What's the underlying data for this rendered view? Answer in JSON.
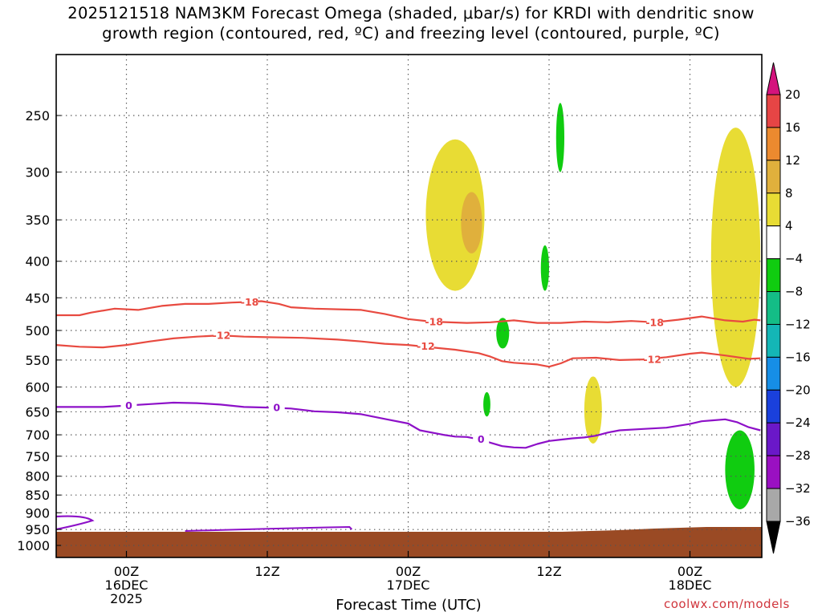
{
  "title": "2025121518 NAM3KM Forecast Omega (shaded, μbar/s) for KRDI with dendritic snow\ngrowth region (contoured, red, ºC) and freezing level (contoured, purple, ºC)",
  "credit": "coolwx.com/models",
  "chart_data": {
    "type": "time-height cross-section",
    "title": "2025121518 NAM3KM Forecast Omega (shaded, μbar/s) for KRDI with dendritic snow growth region (contoured, red, ºC) and freezing level (contoured, purple, ºC)",
    "xlabel": "Forecast Time (UTC)",
    "ylabel": "",
    "x_ticks": [
      {
        "hours": 6,
        "labels": [
          "00Z",
          "16DEC",
          "2025"
        ]
      },
      {
        "hours": 18,
        "labels": [
          "12Z"
        ]
      },
      {
        "hours": 30,
        "labels": [
          "00Z",
          "17DEC"
        ]
      },
      {
        "hours": 42,
        "labels": [
          "12Z"
        ]
      },
      {
        "hours": 54,
        "labels": [
          "00Z",
          "18DEC"
        ]
      }
    ],
    "xlim_hours": [
      0,
      60
    ],
    "y_scale": "log-pressure, inverted",
    "y_ticks_hPa": [
      250,
      300,
      350,
      400,
      450,
      500,
      550,
      600,
      650,
      700,
      750,
      800,
      850,
      900,
      950,
      1000
    ],
    "ylim_hPa": [
      1050,
      200
    ],
    "grid": true,
    "colorbar": {
      "levels": [
        20,
        16,
        12,
        8,
        4,
        -4,
        -8,
        -12,
        -16,
        -20,
        -24,
        -28,
        -32,
        -36
      ],
      "colors": [
        "#d4137d",
        "#e64545",
        "#ec8a2f",
        "#e0b03c",
        "#e8dc34",
        "#ffffff",
        "#10cc10",
        "#14bd86",
        "#14b6b6",
        "#168ee6",
        "#1a40dc",
        "#6a18c8",
        "#9a10c2",
        "#a8a8a8",
        "#000000"
      ]
    },
    "contours": [
      {
        "name": "dendritic -18",
        "label": "-18",
        "color": "#e84a40",
        "points": [
          [
            0,
            476
          ],
          [
            2,
            476
          ],
          [
            3,
            472
          ],
          [
            5,
            466
          ],
          [
            7,
            468
          ],
          [
            9,
            462
          ],
          [
            11,
            459
          ],
          [
            13,
            459
          ],
          [
            15,
            457
          ],
          [
            16.5,
            456
          ],
          [
            17.5,
            455
          ],
          [
            19,
            459
          ],
          [
            20,
            464
          ],
          [
            22,
            466
          ],
          [
            24,
            467
          ],
          [
            26,
            468
          ],
          [
            28,
            474
          ],
          [
            30,
            482
          ],
          [
            32,
            486
          ],
          [
            35,
            488
          ],
          [
            37,
            487
          ],
          [
            39,
            484
          ],
          [
            41,
            488
          ],
          [
            43,
            488
          ],
          [
            45,
            486
          ],
          [
            47,
            487
          ],
          [
            49,
            485
          ],
          [
            51,
            487
          ],
          [
            53,
            483
          ],
          [
            55,
            478
          ],
          [
            57,
            484
          ],
          [
            58.5,
            486
          ],
          [
            59.5,
            483
          ],
          [
            60,
            484
          ]
        ]
      },
      {
        "name": "dendritic -12",
        "label": "-12",
        "color": "#e84a40",
        "points": [
          [
            0,
            524
          ],
          [
            2,
            527
          ],
          [
            4,
            528
          ],
          [
            6,
            524
          ],
          [
            8,
            518
          ],
          [
            10,
            513
          ],
          [
            12,
            510
          ],
          [
            14,
            508
          ],
          [
            16,
            510
          ],
          [
            18,
            511
          ],
          [
            21,
            512
          ],
          [
            24,
            515
          ],
          [
            26,
            518
          ],
          [
            28,
            522
          ],
          [
            30,
            524
          ],
          [
            32,
            528
          ],
          [
            34,
            532
          ],
          [
            36,
            538
          ],
          [
            37,
            544
          ],
          [
            38,
            552
          ],
          [
            39,
            555
          ],
          [
            41,
            558
          ],
          [
            42,
            562
          ],
          [
            43,
            556
          ],
          [
            44,
            547
          ],
          [
            46,
            546
          ],
          [
            48,
            550
          ],
          [
            50,
            549
          ],
          [
            52,
            545
          ],
          [
            54,
            539
          ],
          [
            55,
            537
          ],
          [
            57,
            542
          ],
          [
            59,
            548
          ],
          [
            60,
            547
          ]
        ]
      },
      {
        "name": "freezing level",
        "label": "0",
        "color": "#8d10c8",
        "points": [
          [
            0,
            640
          ],
          [
            2,
            640
          ],
          [
            4,
            640
          ],
          [
            6,
            637
          ],
          [
            8,
            634
          ],
          [
            10,
            631
          ],
          [
            12,
            632
          ],
          [
            14,
            635
          ],
          [
            16,
            640
          ],
          [
            18,
            641
          ],
          [
            20,
            643
          ],
          [
            22,
            649
          ],
          [
            24,
            651
          ],
          [
            26,
            655
          ],
          [
            28,
            665
          ],
          [
            30,
            675
          ],
          [
            31,
            690
          ],
          [
            33,
            700
          ],
          [
            34,
            704
          ],
          [
            35,
            705
          ],
          [
            36,
            710
          ],
          [
            37,
            718
          ],
          [
            38,
            726
          ],
          [
            39,
            729
          ],
          [
            40,
            730
          ],
          [
            41,
            721
          ],
          [
            42,
            714
          ],
          [
            43,
            711
          ],
          [
            44,
            708
          ],
          [
            45,
            706
          ],
          [
            46,
            702
          ],
          [
            47,
            695
          ],
          [
            48,
            690
          ],
          [
            50,
            687
          ],
          [
            52,
            684
          ],
          [
            54,
            676
          ],
          [
            55,
            670
          ],
          [
            56,
            668
          ],
          [
            57,
            666
          ],
          [
            58,
            672
          ],
          [
            59,
            683
          ],
          [
            60,
            690
          ]
        ]
      }
    ],
    "shaded_cells": [
      {
        "value_range": [
          4,
          8
        ],
        "x_hours": [
          31.5,
          36.5
        ],
        "p_hPa": [
          440,
          270
        ]
      },
      {
        "value_range": [
          8,
          12
        ],
        "x_hours": [
          34.5,
          36.3
        ],
        "p_hPa": [
          390,
          320
        ]
      },
      {
        "value_range": [
          4,
          8
        ],
        "x_hours": [
          45,
          46.5
        ],
        "p_hPa": [
          720,
          580
        ]
      },
      {
        "value_range": [
          4,
          8
        ],
        "x_hours": [
          55.8,
          60
        ],
        "p_hPa": [
          600,
          260
        ]
      },
      {
        "value_range": [
          -8,
          -4
        ],
        "x_hours": [
          42.6,
          43.3
        ],
        "p_hPa": [
          300,
          240
        ]
      },
      {
        "value_range": [
          -8,
          -4
        ],
        "x_hours": [
          41.3,
          42
        ],
        "p_hPa": [
          440,
          380
        ]
      },
      {
        "value_range": [
          -8,
          -4
        ],
        "x_hours": [
          37.5,
          38.6
        ],
        "p_hPa": [
          530,
          480
        ]
      },
      {
        "value_range": [
          -8,
          -4
        ],
        "x_hours": [
          36.4,
          37
        ],
        "p_hPa": [
          660,
          610
        ]
      },
      {
        "value_range": [
          -8,
          -4
        ],
        "x_hours": [
          57,
          59.5
        ],
        "p_hPa": [
          890,
          690
        ]
      }
    ]
  }
}
